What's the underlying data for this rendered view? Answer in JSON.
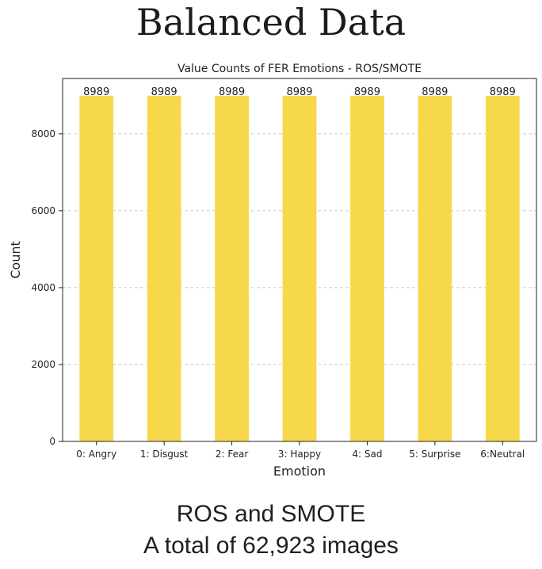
{
  "slide": {
    "title": "Balanced Data",
    "caption_line1": "ROS and SMOTE",
    "caption_line2": "A total of 62,923 images"
  },
  "chart_data": {
    "type": "bar",
    "title": "Value Counts of FER Emotions - ROS/SMOTE",
    "xlabel": "Emotion",
    "ylabel": "Count",
    "categories": [
      "0: Angry",
      "1: Disgust",
      "2: Fear",
      "3: Happy",
      "4: Sad",
      "5: Surprise",
      "6:Neutral"
    ],
    "values": [
      8989,
      8989,
      8989,
      8989,
      8989,
      8989,
      8989
    ],
    "data_labels": [
      "8989",
      "8989",
      "8989",
      "8989",
      "8989",
      "8989",
      "8989"
    ],
    "yticks": [
      0,
      2000,
      4000,
      6000,
      8000
    ],
    "ylim": [
      0,
      9440
    ],
    "grid": "horizontal dashed",
    "bar_color": "#f7d84b",
    "grid_color": "#cccccc"
  }
}
